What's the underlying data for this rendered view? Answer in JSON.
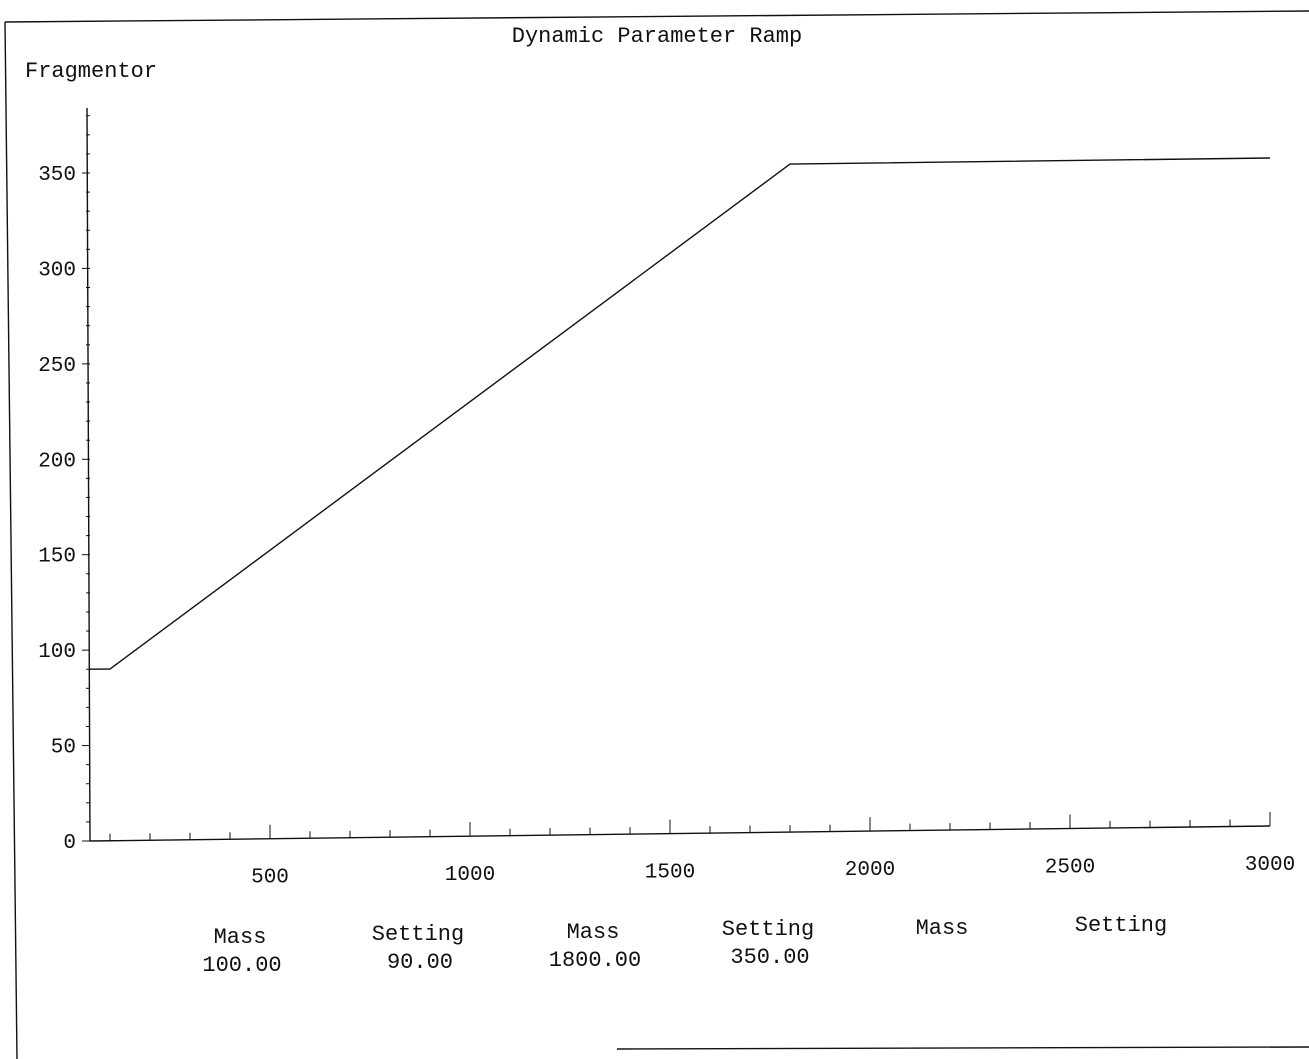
{
  "chart_data": {
    "type": "line",
    "title": "Dynamic Parameter Ramp",
    "ylabel": "Fragmentor",
    "xlabel": "",
    "xlim": [
      50,
      3000
    ],
    "ylim": [
      0,
      380
    ],
    "x_ticks": [
      "500",
      "1000",
      "1500",
      "2000",
      "2500",
      "3000"
    ],
    "x_tick_values": [
      500,
      1000,
      1500,
      2000,
      2500,
      3000
    ],
    "y_ticks": [
      "0",
      "50",
      "100",
      "150",
      "200",
      "250",
      "300",
      "350"
    ],
    "y_tick_values": [
      0,
      50,
      100,
      150,
      200,
      250,
      300,
      350
    ],
    "series": [
      {
        "x": [
          50,
          100,
          1800,
          3000
        ],
        "y": [
          90,
          90,
          350,
          350
        ]
      }
    ],
    "grid": false,
    "legend": "none"
  },
  "ramp_table": {
    "columns": [
      {
        "header": "Mass",
        "value": "100.00"
      },
      {
        "header": "Setting",
        "value": "90.00"
      },
      {
        "header": "Mass",
        "value": "1800.00"
      },
      {
        "header": "Setting",
        "value": "350.00"
      },
      {
        "header": "Mass",
        "value": ""
      },
      {
        "header": "Setting",
        "value": ""
      }
    ]
  },
  "colors": {
    "ink": "#111111",
    "background": "#ffffff"
  }
}
